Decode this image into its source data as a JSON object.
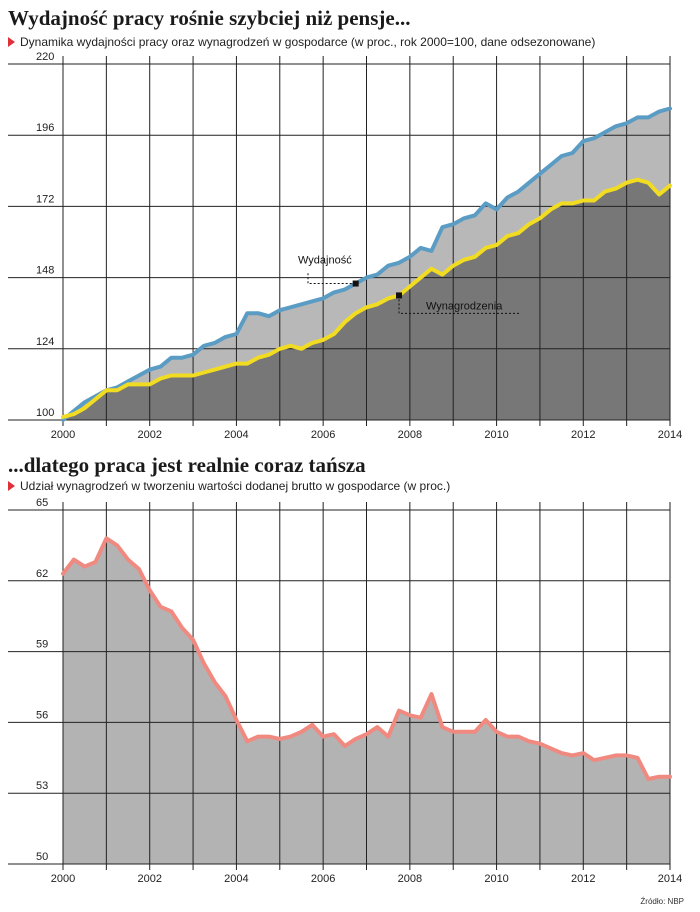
{
  "chart1": {
    "title": "Wydajność pracy rośnie szybciej niż pensje...",
    "subtitle": "Dynamika wydajności pracy oraz wynagrodzeń w gospodarce (w proc., rok 2000=100, dane odsezonowane)"
  },
  "chart2": {
    "title": "...dlatego praca jest realnie coraz tańsza",
    "subtitle": "Udział wynagrodzeń w tworzeniu wartości dodanej brutto w gospodarce (w proc.)"
  },
  "source": "Źródło: NBP",
  "colors": {
    "productivity_line": "#5b9cc4",
    "wages_line": "#f2dc22",
    "share_line": "#f08a80",
    "gap_fill": "#b8b8b8",
    "dark_fill": "#777777",
    "area_fill": "#b3b3b3",
    "marker": "#e0303a"
  },
  "chart_data": [
    {
      "type": "area",
      "title": "Wydajność pracy rośnie szybciej niż pensje...",
      "ylim": [
        100,
        220
      ],
      "yticks": [
        100,
        124,
        148,
        172,
        196,
        220
      ],
      "xlim": [
        2000,
        2014
      ],
      "xticks": [
        2000,
        2002,
        2004,
        2006,
        2008,
        2010,
        2012,
        2014
      ],
      "grid": true,
      "annotations": [
        "Wydajność",
        "Wynagrodzenia"
      ],
      "series": [
        {
          "name": "Wydajność",
          "x": [
            2000,
            2000.25,
            2000.5,
            2000.75,
            2001,
            2001.25,
            2001.5,
            2001.75,
            2002,
            2002.25,
            2002.5,
            2002.75,
            2003,
            2003.25,
            2003.5,
            2003.75,
            2004,
            2004.25,
            2004.5,
            2004.75,
            2005,
            2005.25,
            2005.5,
            2005.75,
            2006,
            2006.25,
            2006.5,
            2006.75,
            2007,
            2007.25,
            2007.5,
            2007.75,
            2008,
            2008.25,
            2008.5,
            2008.75,
            2009,
            2009.25,
            2009.5,
            2009.75,
            2010,
            2010.25,
            2010.5,
            2010.75,
            2011,
            2011.25,
            2011.5,
            2011.75,
            2012,
            2012.25,
            2012.5,
            2012.75,
            2013,
            2013.25,
            2013.5,
            2013.75,
            2014
          ],
          "values": [
            100,
            103,
            106,
            108,
            110,
            111,
            113,
            115,
            117,
            118,
            121,
            121,
            122,
            125,
            126,
            128,
            129,
            136,
            136,
            135,
            137,
            138,
            139,
            140,
            141,
            143,
            144,
            146,
            148,
            149,
            152,
            153,
            155,
            158,
            157,
            165,
            166,
            168,
            169,
            173,
            171,
            175,
            177,
            180,
            183,
            186,
            189,
            190,
            194,
            195,
            197,
            199,
            200,
            202,
            202,
            204,
            205
          ]
        },
        {
          "name": "Wynagrodzenia",
          "x": [
            2000,
            2000.25,
            2000.5,
            2000.75,
            2001,
            2001.25,
            2001.5,
            2001.75,
            2002,
            2002.25,
            2002.5,
            2002.75,
            2003,
            2003.25,
            2003.5,
            2003.75,
            2004,
            2004.25,
            2004.5,
            2004.75,
            2005,
            2005.25,
            2005.5,
            2005.75,
            2006,
            2006.25,
            2006.5,
            2006.75,
            2007,
            2007.25,
            2007.5,
            2007.75,
            2008,
            2008.25,
            2008.5,
            2008.75,
            2009,
            2009.25,
            2009.5,
            2009.75,
            2010,
            2010.25,
            2010.5,
            2010.75,
            2011,
            2011.25,
            2011.5,
            2011.75,
            2012,
            2012.25,
            2012.5,
            2012.75,
            2013,
            2013.25,
            2013.5,
            2013.75,
            2014
          ],
          "values": [
            101,
            102,
            104,
            107,
            110,
            110,
            112,
            112,
            112,
            114,
            115,
            115,
            115,
            116,
            117,
            118,
            119,
            119,
            121,
            122,
            124,
            125,
            124,
            126,
            127,
            129,
            133,
            136,
            138,
            139,
            141,
            142,
            145,
            148,
            151,
            149,
            152,
            154,
            155,
            158,
            159,
            162,
            163,
            166,
            168,
            171,
            173,
            173,
            174,
            174,
            177,
            178,
            180,
            181,
            180,
            176,
            179
          ]
        }
      ]
    },
    {
      "type": "area",
      "title": "...dlatego praca jest realnie coraz tańsza",
      "ylim": [
        50,
        65
      ],
      "yticks": [
        50,
        53,
        56,
        59,
        62,
        65
      ],
      "xlim": [
        2000,
        2014
      ],
      "xticks": [
        2000,
        2002,
        2004,
        2006,
        2008,
        2010,
        2012,
        2014
      ],
      "grid": true,
      "series": [
        {
          "name": "",
          "x": [
            2000,
            2000.25,
            2000.5,
            2000.75,
            2001,
            2001.25,
            2001.5,
            2001.75,
            2002,
            2002.25,
            2002.5,
            2002.75,
            2003,
            2003.25,
            2003.5,
            2003.75,
            2004,
            2004.25,
            2004.5,
            2004.75,
            2005,
            2005.25,
            2005.5,
            2005.75,
            2006,
            2006.25,
            2006.5,
            2006.75,
            2007,
            2007.25,
            2007.5,
            2007.75,
            2008,
            2008.25,
            2008.5,
            2008.75,
            2009,
            2009.25,
            2009.5,
            2009.75,
            2010,
            2010.25,
            2010.5,
            2010.75,
            2011,
            2011.25,
            2011.5,
            2011.75,
            2012,
            2012.25,
            2012.5,
            2012.75,
            2013,
            2013.25,
            2013.5,
            2013.75,
            2014
          ],
          "values": [
            62.3,
            62.9,
            62.6,
            62.8,
            63.8,
            63.5,
            62.9,
            62.5,
            61.6,
            60.9,
            60.7,
            60.0,
            59.5,
            58.5,
            57.7,
            57.1,
            56.1,
            55.2,
            55.4,
            55.4,
            55.3,
            55.4,
            55.6,
            55.9,
            55.4,
            55.5,
            55.0,
            55.3,
            55.5,
            55.8,
            55.4,
            56.5,
            56.3,
            56.2,
            57.2,
            55.8,
            55.6,
            55.6,
            55.6,
            56.1,
            55.6,
            55.4,
            55.4,
            55.2,
            55.1,
            54.9,
            54.7,
            54.6,
            54.7,
            54.4,
            54.5,
            54.6,
            54.6,
            54.5,
            53.6,
            53.7,
            53.7
          ]
        }
      ]
    }
  ]
}
